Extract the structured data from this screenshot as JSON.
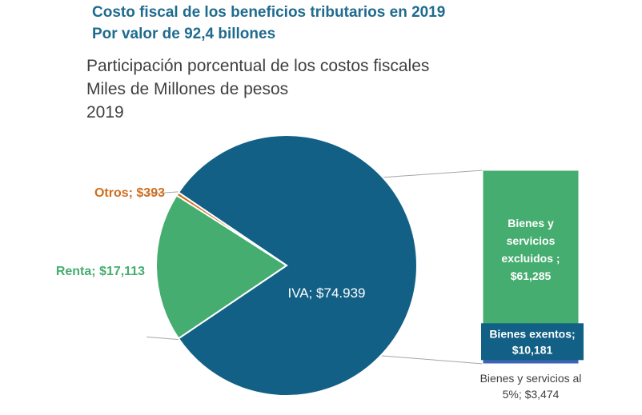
{
  "header": {
    "title_line1": "Costo fiscal de los beneficios tributarios en 2019",
    "title_line2": "Por valor de 92,4 billones"
  },
  "chart_subtitle": {
    "line1": "Participación porcentual de los costos fiscales",
    "line2": "Miles de Millones de pesos",
    "line3": "2019"
  },
  "colors": {
    "iva": "#136086",
    "renta": "#45ad6f",
    "otros": "#d06e1e",
    "bienes_excluidos": "#45ad6f",
    "bienes_exentos": "#136086",
    "bienes_5": "#3b64b4",
    "connector": "#a6a6a6",
    "title": "#1f6b8e"
  },
  "chart_data": {
    "type": "pie",
    "title": "Participación porcentual de los costos fiscales",
    "subtitle": "Miles de Millones de pesos",
    "year": "2019",
    "slices": [
      {
        "name": "IVA",
        "value": 74.939,
        "label": "IVA; $74.939"
      },
      {
        "name": "Renta",
        "value": 17.113,
        "label": "Renta; $17,113"
      },
      {
        "name": "Otros",
        "value": 0.393,
        "label": "Otros; $393"
      }
    ],
    "breakdown_of": "IVA",
    "breakdown": [
      {
        "name": "Bienes y servicios excluidos",
        "value": 61.285,
        "label_lines": [
          "Bienes y",
          "servicios",
          "excluidos ;",
          "$61,285"
        ]
      },
      {
        "name": "Bienes exentos",
        "value": 10.181,
        "label_lines": [
          "Bienes exentos;",
          "$10,181"
        ]
      },
      {
        "name": "Bienes y servicios al 5%",
        "value": 3.474,
        "label_lines": [
          "Bienes y servicios al",
          "5%; $3,474"
        ]
      }
    ]
  }
}
